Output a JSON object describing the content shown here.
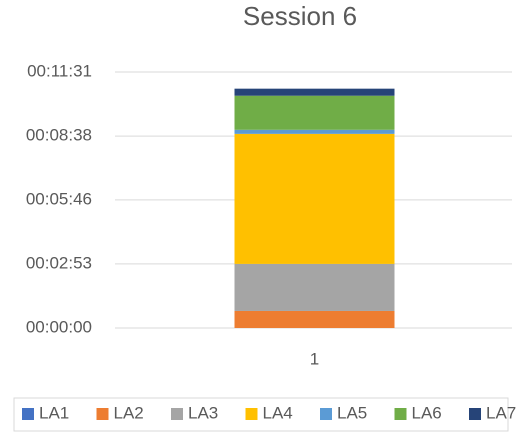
{
  "chart_data": {
    "type": "stacked_bar",
    "title": "Session 6",
    "categories": [
      "1"
    ],
    "series": [
      {
        "name": "LA1",
        "color": "#4472c4",
        "values": [
          0
        ]
      },
      {
        "name": "LA2",
        "color": "#ed7d31",
        "values": [
          46
        ]
      },
      {
        "name": "LA3",
        "color": "#a5a5a5",
        "values": [
          127
        ]
      },
      {
        "name": "LA4",
        "color": "#ffc000",
        "values": [
          351
        ]
      },
      {
        "name": "LA5",
        "color": "#5b9bd5",
        "values": [
          11
        ]
      },
      {
        "name": "LA6",
        "color": "#70ad47",
        "values": [
          92
        ]
      },
      {
        "name": "LA7",
        "color": "#264478",
        "values": [
          19
        ]
      }
    ],
    "ylim": [
      0,
      691
    ],
    "yticks": [
      {
        "value": 0,
        "label": "00:00:00"
      },
      {
        "value": 173,
        "label": "00:02:53"
      },
      {
        "value": 346,
        "label": "00:05:46"
      },
      {
        "value": 518,
        "label": "00:08:38"
      },
      {
        "value": 691,
        "label": "00:11:31"
      }
    ],
    "grid": true,
    "legend": "bottom"
  }
}
